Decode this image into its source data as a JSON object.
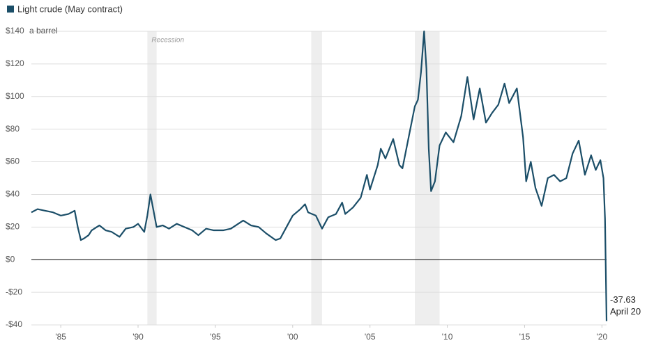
{
  "chart_data": {
    "type": "line",
    "legend": "Light crude (May contract)",
    "y_unit": "a barrel",
    "recessions": {
      "label": "Recession",
      "periods": [
        [
          1990.6,
          1991.2
        ],
        [
          2001.2,
          2001.9
        ],
        [
          2007.9,
          2009.5
        ]
      ]
    },
    "x": [
      1983.1,
      1983.5,
      1984.0,
      1984.5,
      1985.0,
      1985.5,
      1985.9,
      1986.1,
      1986.3,
      1986.5,
      1986.8,
      1987.0,
      1987.5,
      1987.9,
      1988.3,
      1988.8,
      1989.2,
      1989.7,
      1990.0,
      1990.4,
      1990.6,
      1990.8,
      1991.0,
      1991.2,
      1991.6,
      1992.0,
      1992.5,
      1993.0,
      1993.5,
      1993.9,
      1994.4,
      1994.9,
      1995.5,
      1996.0,
      1996.8,
      1997.3,
      1997.8,
      1998.3,
      1998.9,
      1999.2,
      1999.6,
      2000.0,
      2000.5,
      2000.8,
      2001.0,
      2001.5,
      2001.9,
      2002.3,
      2002.8,
      2003.2,
      2003.4,
      2003.9,
      2004.4,
      2004.8,
      2005.0,
      2005.5,
      2005.7,
      2006.0,
      2006.5,
      2006.9,
      2007.1,
      2007.5,
      2007.9,
      2008.1,
      2008.3,
      2008.5,
      2008.65,
      2008.8,
      2008.95,
      2009.2,
      2009.5,
      2009.9,
      2010.4,
      2010.9,
      2011.3,
      2011.7,
      2012.1,
      2012.5,
      2012.9,
      2013.3,
      2013.7,
      2014.0,
      2014.5,
      2014.9,
      2015.1,
      2015.4,
      2015.7,
      2016.1,
      2016.5,
      2016.9,
      2017.3,
      2017.7,
      2018.1,
      2018.5,
      2018.9,
      2019.3,
      2019.6,
      2019.9,
      2020.1,
      2020.2,
      2020.3
    ],
    "series": [
      {
        "name": "Light crude (May contract)",
        "color": "#1b4e68",
        "values": [
          29,
          31,
          30,
          29,
          27,
          28,
          30,
          20,
          12,
          13,
          15,
          18,
          21,
          18,
          17,
          14,
          19,
          20,
          22,
          17,
          27,
          40,
          30,
          20,
          21,
          19,
          22,
          20,
          18,
          15,
          19,
          18,
          18,
          19,
          24,
          21,
          20,
          16,
          12,
          13,
          20,
          27,
          31,
          34,
          29,
          27,
          19,
          26,
          28,
          35,
          28,
          32,
          38,
          52,
          43,
          58,
          68,
          62,
          74,
          58,
          56,
          75,
          94,
          98,
          115,
          140,
          117,
          68,
          42,
          48,
          70,
          78,
          72,
          88,
          112,
          86,
          105,
          84,
          90,
          95,
          108,
          96,
          105,
          75,
          48,
          60,
          44,
          33,
          50,
          52,
          48,
          50,
          65,
          73,
          52,
          64,
          55,
          61,
          50,
          25,
          -37.63
        ]
      }
    ],
    "annotation": "April 20",
    "xlim": [
      1983.1,
      2020.3
    ],
    "xticks": [
      {
        "value": 1985,
        "label": "'85"
      },
      {
        "value": 1990,
        "label": "'90"
      },
      {
        "value": 1995,
        "label": "'95"
      },
      {
        "value": 2000,
        "label": "'00"
      },
      {
        "value": 2005,
        "label": "'05"
      },
      {
        "value": 2010,
        "label": "'10"
      },
      {
        "value": 2015,
        "label": "'15"
      },
      {
        "value": 2020,
        "label": "'20"
      }
    ],
    "ylim": [
      -40,
      140
    ],
    "yticks": [
      {
        "value": 140,
        "label": "$140"
      },
      {
        "value": 120,
        "label": "$120"
      },
      {
        "value": 100,
        "label": "$100"
      },
      {
        "value": 80,
        "label": "$80"
      },
      {
        "value": 60,
        "label": "$60"
      },
      {
        "value": 40,
        "label": "$40"
      },
      {
        "value": 20,
        "label": "$20"
      },
      {
        "value": 0,
        "label": "$0"
      },
      {
        "value": -20,
        "label": "-$20"
      },
      {
        "value": -40,
        "label": "-$40"
      }
    ],
    "grid": true
  }
}
